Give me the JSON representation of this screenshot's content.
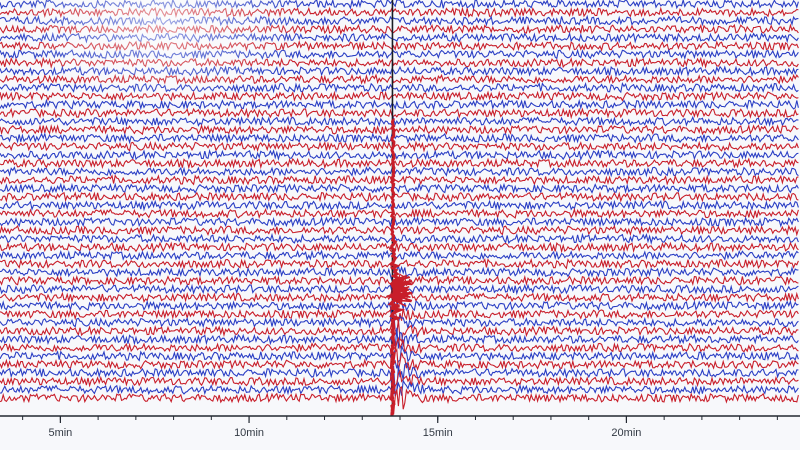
{
  "chart_data": {
    "type": "line",
    "title": "",
    "xlabel": "",
    "ylabel": "",
    "x_ticks": [
      {
        "value": 5,
        "label": "5min"
      },
      {
        "value": 10,
        "label": "10min"
      },
      {
        "value": 15,
        "label": "15min"
      },
      {
        "value": 20,
        "label": "20min"
      }
    ],
    "xlim": [
      3.4,
      24.6
    ],
    "trace_count": 48,
    "trace_colors": [
      "#2a3ec4",
      "#c81e2a"
    ],
    "event": {
      "time_min": 13.8,
      "marker_color": "#c81e2a"
    },
    "grid": false,
    "legend": "none"
  }
}
